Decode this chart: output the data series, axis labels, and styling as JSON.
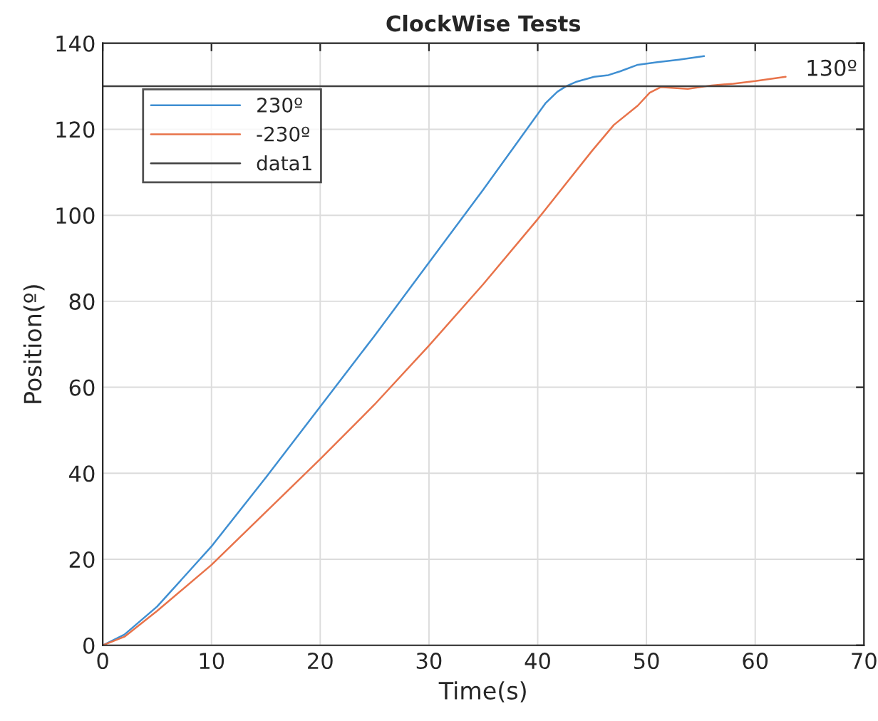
{
  "chart_data": {
    "type": "line",
    "title": "ClockWise Tests",
    "xlabel": "Time(s)",
    "ylabel": "Position(º)",
    "xlim": [
      0,
      70
    ],
    "xticks": [
      0,
      10,
      20,
      30,
      40,
      50,
      60,
      70
    ],
    "ylim": [
      0,
      140
    ],
    "yticks": [
      0,
      20,
      40,
      60,
      80,
      100,
      120,
      140
    ],
    "grid": true,
    "legend": "top left",
    "series": [
      {
        "name": "230º",
        "color": "#3f8fd2",
        "x": [
          0,
          2,
          5,
          10,
          15,
          20,
          25,
          30,
          35,
          38,
          40.7,
          41.8,
          42.6,
          43.5,
          45.2,
          46.5,
          47.6,
          49.2,
          51,
          53,
          55.3
        ],
        "values": [
          0,
          2.5,
          9,
          23,
          39,
          55.5,
          72,
          89,
          106,
          116.5,
          126,
          128.7,
          130,
          131,
          132.2,
          132.6,
          133.5,
          135,
          135.6,
          136.2,
          137
        ]
      },
      {
        "name": "-230º",
        "color": "#e8734a",
        "x": [
          0,
          2,
          5,
          10,
          15,
          20,
          25,
          30,
          35,
          40,
          45,
          47,
          49.2,
          50.3,
          51.3,
          53.8,
          56,
          58,
          60,
          62.8
        ],
        "values": [
          0,
          2,
          8,
          18.7,
          31,
          43.3,
          56,
          69.7,
          84,
          99.1,
          115,
          121,
          125.5,
          128.5,
          129.8,
          129.4,
          130.2,
          130.6,
          131.2,
          132.2
        ]
      },
      {
        "name": "data1",
        "color": "#404040",
        "x": [
          0,
          70
        ],
        "values": [
          130,
          130
        ]
      }
    ],
    "annotations": [
      {
        "text": "130º",
        "x": 67,
        "y": 130
      }
    ]
  }
}
